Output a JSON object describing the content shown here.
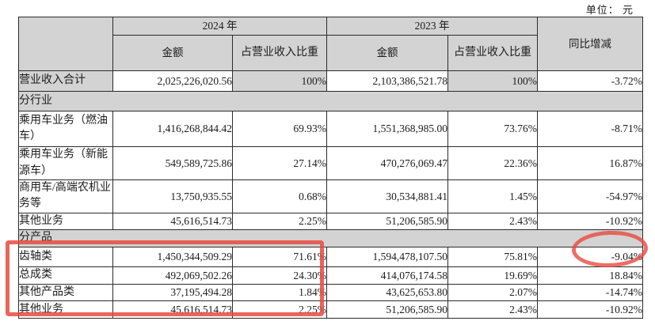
{
  "unit_label": "单位： 元",
  "table": {
    "header": {
      "year_2024": "2024 年",
      "year_2023": "2023 年",
      "amount": "金额",
      "ratio": "占营业收入比重",
      "yoy": "同比增减"
    },
    "rows": [
      {
        "type": "data",
        "shaded": true,
        "label": "营业收入合计",
        "a24": "2,025,226,020.56",
        "r24": "100%",
        "a23": "2,103,386,521.78",
        "r23": "100%",
        "yoy": "-3.72%"
      },
      {
        "type": "section",
        "label": "分行业"
      },
      {
        "type": "data",
        "label": "乘用车业务（燃油车）",
        "a24": "1,416,268,844.42",
        "r24": "69.93%",
        "a23": "1,551,368,985.00",
        "r23": "73.76%",
        "yoy": "-8.71%"
      },
      {
        "type": "data",
        "label": "乘用车业务（新能源车）",
        "a24": "549,589,725.86",
        "r24": "27.14%",
        "a23": "470,276,069.47",
        "r23": "22.36%",
        "yoy": "16.87%"
      },
      {
        "type": "data",
        "label": "商用车/高端农机业务等",
        "a24": "13,750,935.55",
        "r24": "0.68%",
        "a23": "30,534,881.41",
        "r23": "1.45%",
        "yoy": "-54.97%"
      },
      {
        "type": "data",
        "label": "其他业务",
        "a24": "45,616,514.73",
        "r24": "2.25%",
        "a23": "51,206,585.90",
        "r23": "2.43%",
        "yoy": "-10.92%"
      },
      {
        "type": "section",
        "label": "分产品"
      },
      {
        "type": "data",
        "label": "齿轴类",
        "a24": "1,450,344,509.29",
        "r24": "71.61%",
        "a23": "1,594,478,107.50",
        "r23": "75.81%",
        "yoy": "-9.04%"
      },
      {
        "type": "data",
        "label": "总成类",
        "a24": "492,069,502.26",
        "r24": "24.30%",
        "a23": "414,076,174.58",
        "r23": "19.69%",
        "yoy": "18.84%"
      },
      {
        "type": "data",
        "label": "其他产品类",
        "a24": "37,195,494.28",
        "r24": "1.84%",
        "a23": "43,625,653.80",
        "r23": "2.07%",
        "yoy": "-14.74%"
      },
      {
        "type": "data",
        "label": "其他业务",
        "a24": "45,616,514.73",
        "r24": "2.25%",
        "a23": "51,206,585.90",
        "r23": "2.43%",
        "yoy": "-10.92%"
      }
    ]
  },
  "annotations": {
    "rectangle_note": "red box around product rows (2024 columns)",
    "ellipse_note": "red circle around -9.04%",
    "highlight_color": "#e84a3e"
  }
}
